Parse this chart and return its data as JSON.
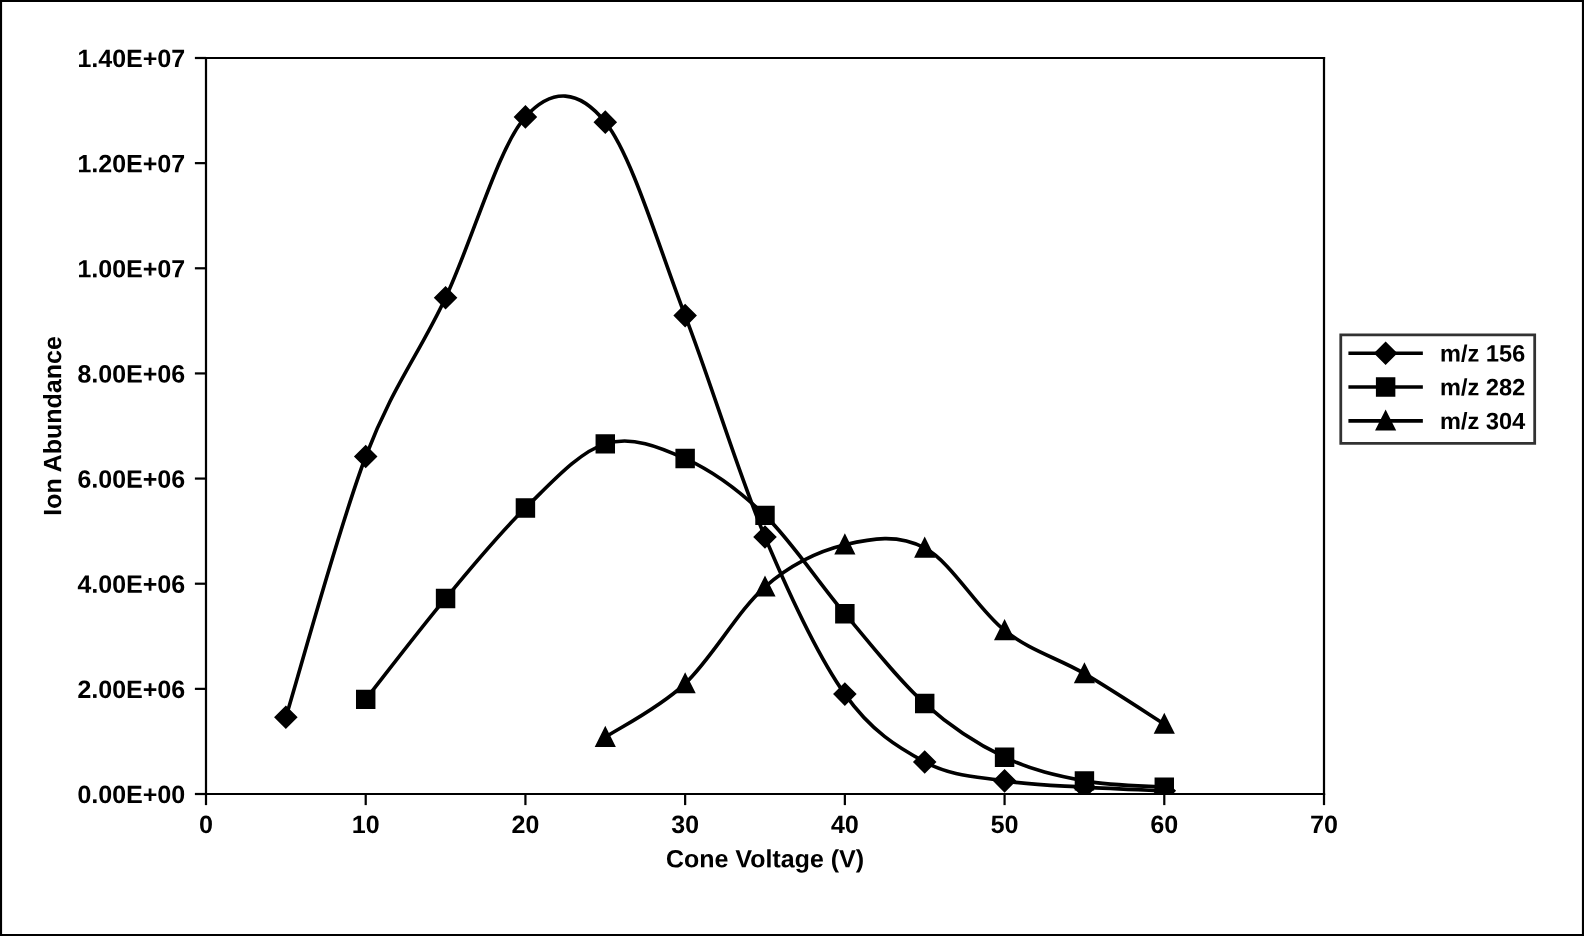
{
  "chart_data": {
    "type": "line",
    "xlabel": "Cone Voltage (V)",
    "ylabel": "Ion Abundance",
    "xlim": [
      0,
      70
    ],
    "xticks": [
      0,
      10,
      20,
      30,
      40,
      50,
      60,
      70
    ],
    "ylim": [
      0,
      14000000
    ],
    "yticks": [
      {
        "value": 0,
        "label": "0.00E+00"
      },
      {
        "value": 2000000,
        "label": "2.00E+06"
      },
      {
        "value": 4000000,
        "label": "4.00E+06"
      },
      {
        "value": 6000000,
        "label": "6.00E+06"
      },
      {
        "value": 8000000,
        "label": "8.00E+06"
      },
      {
        "value": 10000000,
        "label": "1.00E+07"
      },
      {
        "value": 12000000,
        "label": "1.20E+07"
      },
      {
        "value": 14000000,
        "label": "1.40E+07"
      }
    ],
    "grid": false,
    "legend": "right",
    "series": [
      {
        "name": "m/z 156",
        "color": "#000000",
        "marker": "diamond",
        "x": [
          5,
          10,
          15,
          20,
          25,
          30,
          35,
          40,
          45,
          50,
          55,
          60
        ],
        "values": [
          1460000,
          6420000,
          9440000,
          12880000,
          12780000,
          9100000,
          4890000,
          1900000,
          610000,
          250000,
          130000,
          60000
        ]
      },
      {
        "name": "m/z 282",
        "color": "#000000",
        "marker": "square",
        "x": [
          10,
          15,
          20,
          25,
          30,
          35,
          40,
          45,
          50,
          55,
          60
        ],
        "values": [
          1800000,
          3720000,
          5440000,
          6660000,
          6380000,
          5300000,
          3430000,
          1720000,
          700000,
          250000,
          130000
        ]
      },
      {
        "name": "m/z 304",
        "color": "#000000",
        "marker": "triangle",
        "x": [
          25,
          30,
          35,
          40,
          45,
          50,
          55,
          60
        ],
        "values": [
          1080000,
          2100000,
          3940000,
          4740000,
          4680000,
          3110000,
          2290000,
          1330000
        ]
      }
    ]
  }
}
